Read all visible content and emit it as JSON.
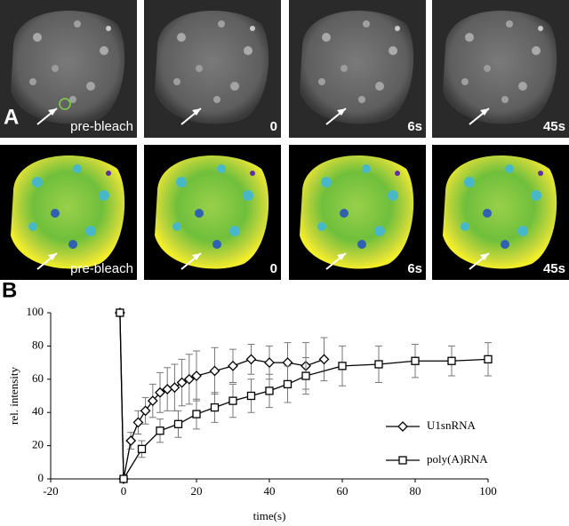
{
  "panel_labels": [
    "A",
    "B"
  ],
  "panels": {
    "top": [
      "pre-bleach",
      "0",
      "6s",
      "45s"
    ],
    "bottom": [
      "pre-bleach",
      "0",
      "6s",
      "45s"
    ]
  },
  "chart_data": {
    "type": "line",
    "xlabel": "time(s)",
    "ylabel": "rel. intensity",
    "xlim": [
      -20,
      100
    ],
    "xticks": [
      -20,
      0,
      20,
      40,
      60,
      80,
      100
    ],
    "ylim": [
      0,
      100
    ],
    "yticks": [
      0,
      20,
      40,
      60,
      80,
      100
    ],
    "legend": "lower right",
    "series": [
      {
        "name": "U1snRNA",
        "color": "#000000",
        "marker": "diamond",
        "x": [
          -1,
          0,
          2,
          4,
          6,
          8,
          10,
          12,
          14,
          16,
          18,
          20,
          25,
          30,
          35,
          40,
          45,
          50,
          55
        ],
        "values": [
          100,
          0,
          23,
          34,
          41,
          47,
          52,
          54,
          55,
          58,
          60,
          62,
          65,
          68,
          72,
          70,
          70,
          68,
          72
        ],
        "errors": [
          0,
          0,
          5,
          7,
          8,
          10,
          12,
          13,
          14,
          14,
          15,
          15,
          14,
          10,
          9,
          10,
          12,
          14,
          13
        ]
      },
      {
        "name": "poly(A)RNA",
        "color": "#000000",
        "marker": "square",
        "x": [
          -1,
          0,
          5,
          10,
          15,
          20,
          25,
          30,
          35,
          40,
          45,
          50,
          60,
          70,
          80,
          90,
          100
        ],
        "values": [
          100,
          0,
          18,
          29,
          33,
          39,
          43,
          47,
          50,
          53,
          57,
          62,
          68,
          69,
          71,
          71,
          72
        ],
        "errors": [
          0,
          0,
          5,
          7,
          8,
          9,
          9,
          10,
          10,
          10,
          11,
          11,
          12,
          11,
          10,
          9,
          10
        ]
      }
    ]
  }
}
